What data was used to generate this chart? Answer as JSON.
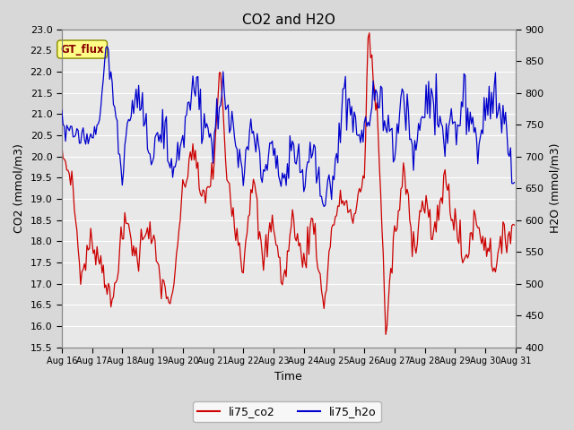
{
  "title": "CO2 and H2O",
  "xlabel": "Time",
  "ylabel_left": "CO2 (mmol/m3)",
  "ylabel_right": "H2O (mmol/m3)",
  "ylim_left": [
    15.5,
    23.0
  ],
  "ylim_right": [
    400,
    900
  ],
  "xlim": [
    0,
    360
  ],
  "x_tick_labels": [
    "Aug 16",
    "Aug 17",
    "Aug 18",
    "Aug 19",
    "Aug 20",
    "Aug 21",
    "Aug 22",
    "Aug 23",
    "Aug 24",
    "Aug 25",
    "Aug 26",
    "Aug 27",
    "Aug 28",
    "Aug 29",
    "Aug 30",
    "Aug 31"
  ],
  "x_tick_positions": [
    0,
    24,
    48,
    72,
    96,
    120,
    144,
    168,
    192,
    216,
    240,
    264,
    288,
    312,
    336,
    360
  ],
  "co2_color": "#cc0000",
  "h2o_color": "#0000cc",
  "legend_label": "GT_flux",
  "legend_text_color": "#880000",
  "legend_bg_color": "#ffff88",
  "series_labels": [
    "li75_co2",
    "li75_h2o"
  ],
  "background_color": "#d8d8d8",
  "plot_bg_color": "#e8e8e8",
  "grid_color": "#ffffff",
  "title_fontsize": 11,
  "axis_label_fontsize": 9,
  "tick_fontsize": 8
}
